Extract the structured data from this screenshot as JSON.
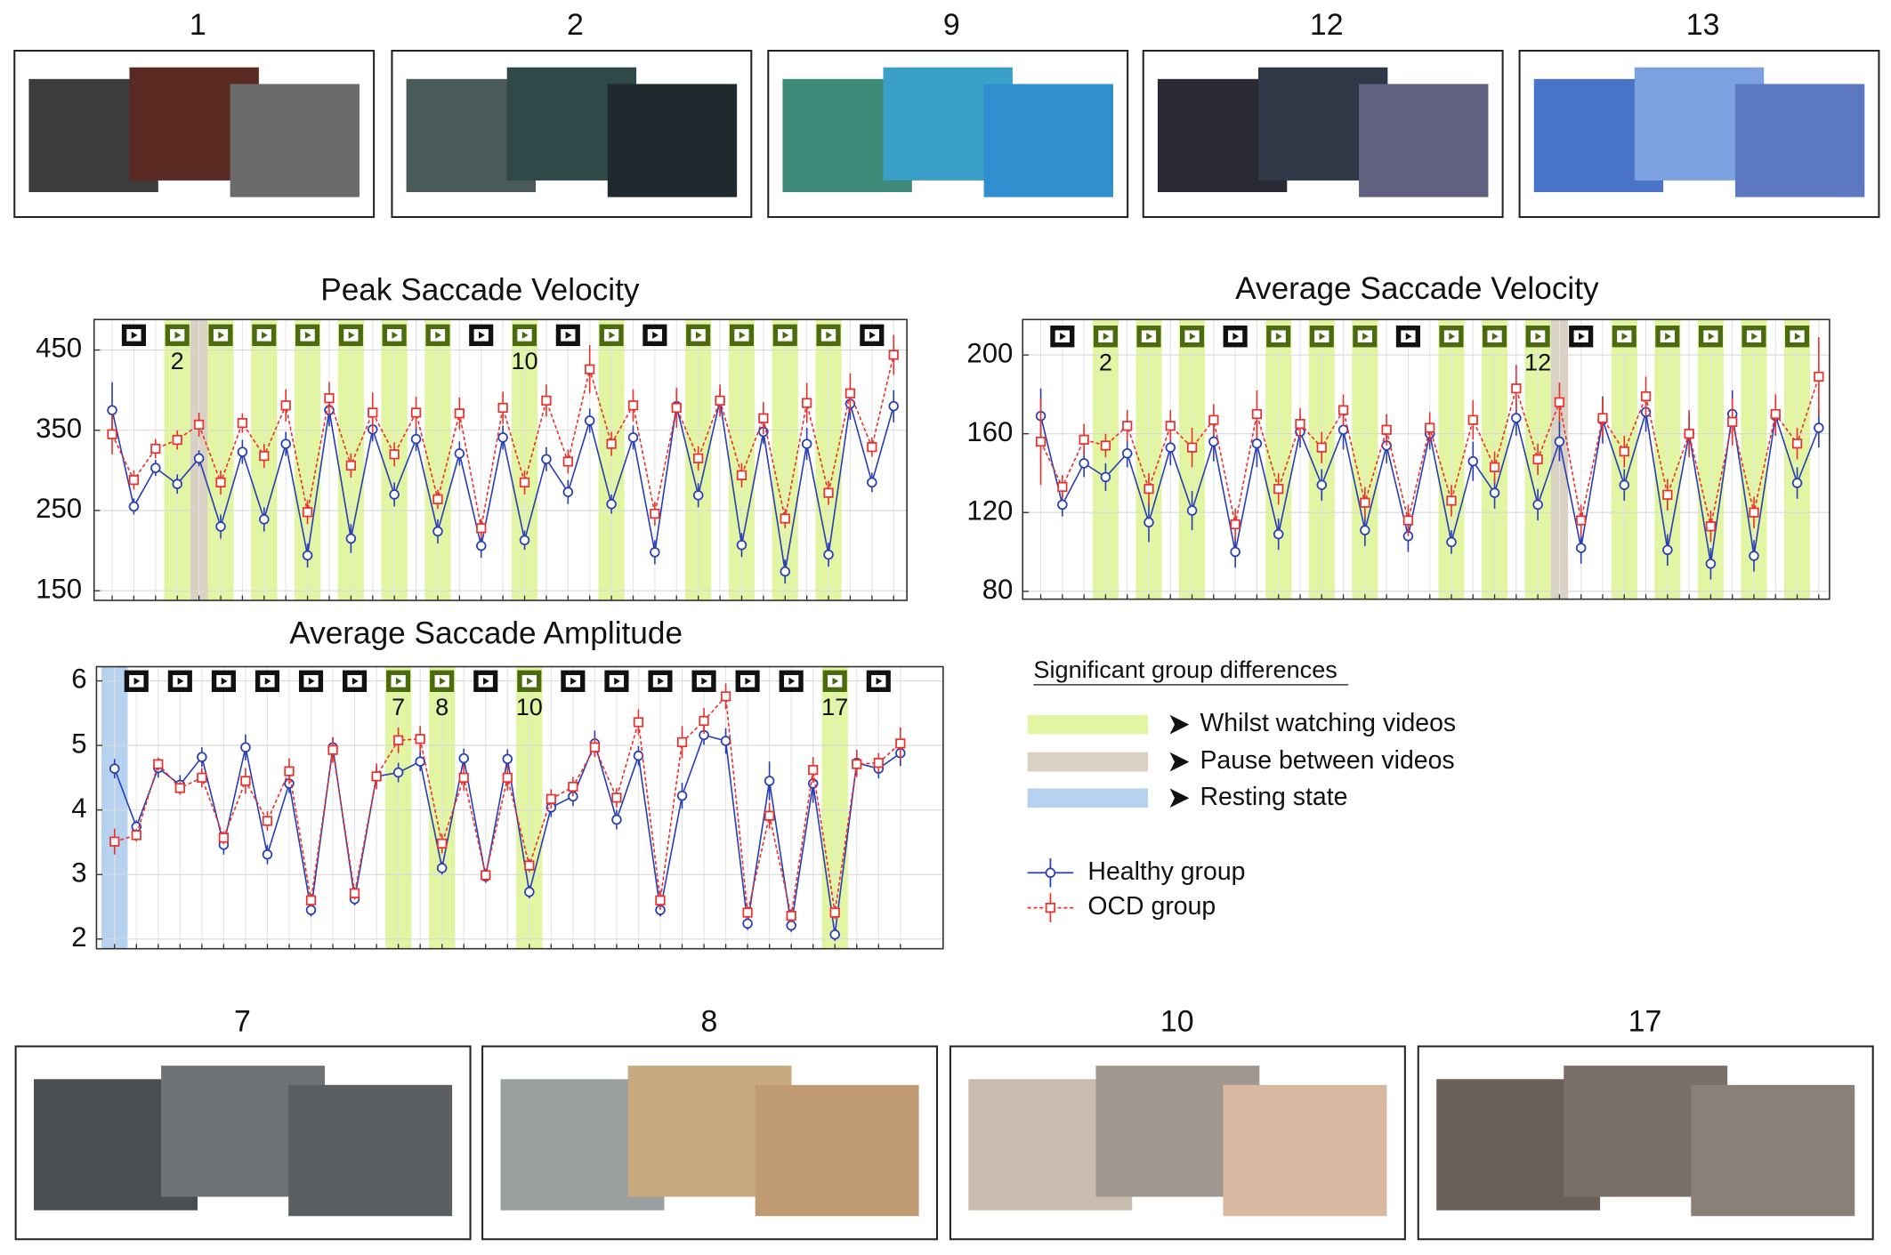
{
  "thumbnails": {
    "top": [
      "1",
      "2",
      "9",
      "12",
      "13"
    ],
    "bottom": [
      "7",
      "8",
      "10",
      "17"
    ]
  },
  "legend": {
    "title": "Significant group differences",
    "items": [
      {
        "label": "Whilst watching videos",
        "color": "#e2f5a3"
      },
      {
        "label": "Pause between videos",
        "color": "#d9d1c3"
      },
      {
        "label": "Resting state",
        "color": "#b6d2ee"
      }
    ]
  },
  "chart_data": [
    {
      "type": "line",
      "title": "Peak Saccade Velocity",
      "ylim": [
        138,
        488
      ],
      "yticks": [
        150,
        250,
        350,
        450
      ],
      "grid": true,
      "bands": [
        {
          "start": 2.4,
          "end": 3.6,
          "kind": 0
        },
        {
          "start": 3.6,
          "end": 4.5,
          "kind": 1
        },
        {
          "start": 4.4,
          "end": 5.6,
          "kind": 0
        },
        {
          "start": 6.4,
          "end": 7.6,
          "kind": 0
        },
        {
          "start": 8.4,
          "end": 9.6,
          "kind": 0
        },
        {
          "start": 10.4,
          "end": 11.6,
          "kind": 0
        },
        {
          "start": 12.4,
          "end": 13.6,
          "kind": 0
        },
        {
          "start": 14.4,
          "end": 15.6,
          "kind": 0
        },
        {
          "start": 18.4,
          "end": 19.6,
          "kind": 0
        },
        {
          "start": 22.4,
          "end": 23.6,
          "kind": 0
        },
        {
          "start": 26.4,
          "end": 27.6,
          "kind": 0
        },
        {
          "start": 28.4,
          "end": 29.6,
          "kind": 0
        },
        {
          "start": 30.4,
          "end": 31.6,
          "kind": 0
        },
        {
          "start": 32.4,
          "end": 33.6,
          "kind": 0
        }
      ],
      "annotations": [
        {
          "x": 3,
          "text": "2"
        },
        {
          "x": 19,
          "text": "10"
        }
      ],
      "series": [
        {
          "name": "Healthy group",
          "color": "#2b3fb5",
          "values": [
            375,
            255,
            303,
            283,
            315,
            230,
            323,
            239,
            333,
            194,
            375,
            215,
            351,
            270,
            339,
            224,
            321,
            206,
            341,
            213,
            314,
            273,
            362,
            258,
            341,
            198,
            380,
            269,
            387,
            207,
            348,
            174,
            333,
            195,
            383,
            285,
            380
          ],
          "errors": [
            35,
            10,
            10,
            12,
            10,
            15,
            15,
            15,
            15,
            15,
            20,
            18,
            15,
            15,
            15,
            15,
            15,
            15,
            15,
            12,
            15,
            15,
            15,
            12,
            15,
            15,
            20,
            15,
            15,
            15,
            15,
            15,
            20,
            15,
            20,
            12,
            20
          ]
        },
        {
          "name": "OCD group",
          "color": "#e8332f",
          "values": [
            345,
            288,
            327,
            338,
            357,
            285,
            359,
            318,
            381,
            248,
            390,
            306,
            372,
            320,
            372,
            264,
            371,
            228,
            378,
            285,
            387,
            311,
            426,
            333,
            381,
            246,
            378,
            315,
            387,
            294,
            365,
            240,
            384,
            272,
            396,
            329,
            444
          ],
          "errors": [
            25,
            12,
            12,
            12,
            15,
            15,
            12,
            15,
            20,
            15,
            20,
            15,
            25,
            15,
            20,
            12,
            20,
            12,
            20,
            15,
            20,
            15,
            30,
            15,
            20,
            15,
            25,
            15,
            20,
            15,
            20,
            12,
            25,
            15,
            25,
            12,
            25
          ]
        }
      ]
    },
    {
      "type": "line",
      "title": "Average Saccade Velocity",
      "ylim": [
        76,
        218
      ],
      "yticks": [
        80,
        120,
        160,
        200
      ],
      "grid": true,
      "bands": [
        {
          "start": 2.4,
          "end": 3.6,
          "kind": 0
        },
        {
          "start": 4.4,
          "end": 5.6,
          "kind": 0
        },
        {
          "start": 6.4,
          "end": 7.6,
          "kind": 0
        },
        {
          "start": 10.4,
          "end": 11.6,
          "kind": 0
        },
        {
          "start": 12.4,
          "end": 13.6,
          "kind": 0
        },
        {
          "start": 14.4,
          "end": 15.6,
          "kind": 0
        },
        {
          "start": 18.4,
          "end": 19.6,
          "kind": 0
        },
        {
          "start": 20.4,
          "end": 21.6,
          "kind": 0
        },
        {
          "start": 22.4,
          "end": 23.6,
          "kind": 0
        },
        {
          "start": 23.6,
          "end": 24.4,
          "kind": 1
        },
        {
          "start": 26.4,
          "end": 27.6,
          "kind": 0
        },
        {
          "start": 28.4,
          "end": 29.6,
          "kind": 0
        },
        {
          "start": 30.4,
          "end": 31.6,
          "kind": 0
        },
        {
          "start": 32.4,
          "end": 33.6,
          "kind": 0
        },
        {
          "start": 34.4,
          "end": 35.6,
          "kind": 0
        }
      ],
      "annotations": [
        {
          "x": 3,
          "text": "2"
        },
        {
          "x": 23,
          "text": "12"
        }
      ],
      "series": [
        {
          "name": "Healthy group",
          "color": "#2b3fb5",
          "values": [
            169,
            124,
            145,
            138,
            150,
            115,
            153,
            121,
            156,
            100,
            155,
            109,
            161,
            134,
            162,
            111,
            154,
            108,
            160,
            105,
            146,
            130,
            168,
            124,
            156,
            102,
            167,
            134,
            171,
            101,
            160,
            94,
            170,
            98,
            169,
            135,
            163
          ],
          "errors": [
            14,
            6,
            7,
            7,
            7,
            10,
            9,
            10,
            10,
            8,
            12,
            8,
            8,
            8,
            10,
            8,
            9,
            8,
            8,
            6,
            10,
            8,
            9,
            8,
            10,
            8,
            12,
            8,
            10,
            8,
            10,
            8,
            12,
            8,
            10,
            8,
            10
          ]
        },
        {
          "name": "OCD group",
          "color": "#e8332f",
          "values": [
            156,
            133,
            157,
            154,
            164,
            132,
            164,
            153,
            167,
            114,
            170,
            132,
            165,
            153,
            172,
            125,
            162,
            116,
            163,
            126,
            167,
            143,
            183,
            147,
            176,
            116,
            168,
            151,
            179,
            129,
            160,
            113,
            166,
            120,
            170,
            155,
            189
          ],
          "errors": [
            22,
            6,
            8,
            6,
            8,
            8,
            8,
            10,
            8,
            8,
            12,
            8,
            8,
            8,
            8,
            8,
            8,
            8,
            8,
            8,
            10,
            8,
            12,
            8,
            10,
            8,
            10,
            8,
            10,
            8,
            12,
            8,
            12,
            8,
            10,
            8,
            20
          ]
        }
      ]
    },
    {
      "type": "line",
      "title": "Average Saccade Amplitude",
      "ylim": [
        1.85,
        6.22
      ],
      "yticks": [
        2,
        3,
        4,
        5,
        6
      ],
      "grid": true,
      "bands": [
        {
          "start": -0.6,
          "end": 0.6,
          "kind": 2
        },
        {
          "start": 12.4,
          "end": 13.6,
          "kind": 0
        },
        {
          "start": 14.4,
          "end": 15.6,
          "kind": 0
        },
        {
          "start": 18.4,
          "end": 19.6,
          "kind": 0
        },
        {
          "start": 32.4,
          "end": 33.6,
          "kind": 0
        }
      ],
      "annotations": [
        {
          "x": 13,
          "text": "7"
        },
        {
          "x": 15,
          "text": "8"
        },
        {
          "x": 19,
          "text": "10"
        },
        {
          "x": 33,
          "text": "17"
        }
      ],
      "series": [
        {
          "name": "Healthy group",
          "color": "#2b3fb5",
          "values": [
            4.64,
            3.74,
            4.65,
            4.39,
            4.82,
            3.46,
            4.97,
            3.31,
            4.41,
            2.45,
            4.97,
            2.62,
            4.52,
            4.58,
            4.75,
            3.1,
            4.8,
            2.97,
            4.79,
            2.73,
            4.04,
            4.21,
            5.03,
            3.85,
            4.84,
            2.45,
            4.22,
            5.16,
            5.07,
            2.24,
            4.45,
            2.21,
            4.41,
            2.07,
            4.73,
            4.64,
            4.88
          ],
          "errors": [
            0.15,
            0.1,
            0.15,
            0.15,
            0.15,
            0.15,
            0.2,
            0.15,
            0.15,
            0.1,
            0.15,
            0.1,
            0.15,
            0.15,
            0.15,
            0.1,
            0.15,
            0.1,
            0.15,
            0.1,
            0.15,
            0.15,
            0.2,
            0.15,
            0.15,
            0.1,
            0.2,
            0.15,
            0.2,
            0.1,
            0.3,
            0.1,
            0.3,
            0.1,
            0.2,
            0.15,
            0.2
          ]
        },
        {
          "name": "OCD group",
          "color": "#e8332f",
          "values": [
            3.51,
            3.61,
            4.71,
            4.34,
            4.5,
            3.57,
            4.45,
            3.83,
            4.6,
            2.6,
            4.93,
            2.71,
            4.52,
            5.08,
            5.1,
            3.48,
            4.5,
            2.99,
            4.5,
            3.14,
            4.17,
            4.36,
            4.97,
            4.19,
            5.36,
            2.6,
            5.05,
            5.38,
            5.76,
            2.41,
            3.91,
            2.36,
            4.62,
            2.41,
            4.71,
            4.73,
            5.03
          ],
          "errors": [
            0.2,
            0.1,
            0.1,
            0.1,
            0.15,
            0.1,
            0.2,
            0.15,
            0.2,
            0.1,
            0.2,
            0.1,
            0.2,
            0.2,
            0.2,
            0.15,
            0.2,
            0.1,
            0.2,
            0.1,
            0.15,
            0.15,
            0.15,
            0.15,
            0.2,
            0.15,
            0.25,
            0.2,
            0.2,
            0.1,
            0.2,
            0.1,
            0.2,
            0.1,
            0.2,
            0.15,
            0.25
          ]
        }
      ]
    }
  ]
}
